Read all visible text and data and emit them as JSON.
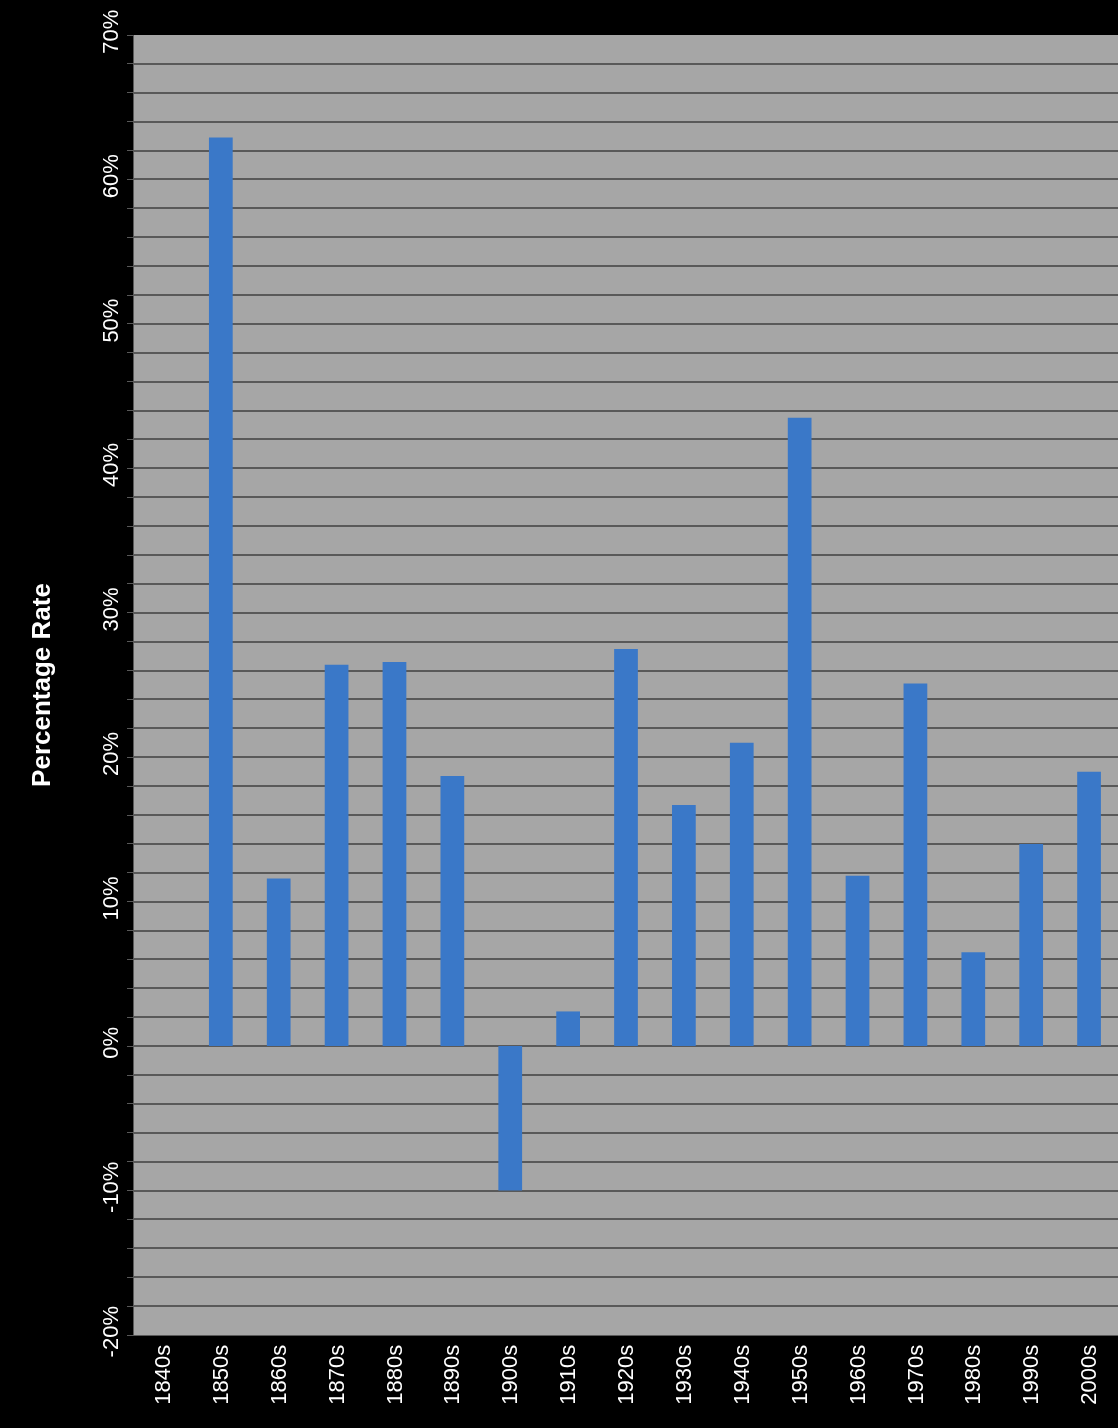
{
  "chart_data": {
    "type": "bar",
    "ylabel": "Percentage Rate",
    "categories": [
      "1840s",
      "1850s",
      "1860s",
      "1870s",
      "1880s",
      "1890s",
      "1900s",
      "1910s",
      "1920s",
      "1930s",
      "1940s",
      "1950s",
      "1960s",
      "1970s",
      "1980s",
      "1990s",
      "2000s"
    ],
    "values": [
      null,
      62.9,
      11.6,
      26.4,
      26.6,
      18.7,
      -10.0,
      2.4,
      27.5,
      16.7,
      21.0,
      43.5,
      11.8,
      25.1,
      6.5,
      14.0,
      19.0
    ],
    "color": "#3a78c8",
    "ylim": [
      -20,
      70
    ],
    "yticks": [
      {
        "value": -20,
        "label": "-20%"
      },
      {
        "value": -18,
        "label": null
      },
      {
        "value": -16,
        "label": null
      },
      {
        "value": -14,
        "label": null
      },
      {
        "value": -12,
        "label": null
      },
      {
        "value": -10,
        "label": "-10%"
      },
      {
        "value": -8,
        "label": null
      },
      {
        "value": -6,
        "label": null
      },
      {
        "value": -4,
        "label": null
      },
      {
        "value": -2,
        "label": null
      },
      {
        "value": 0,
        "label": "0%"
      },
      {
        "value": 2,
        "label": null
      },
      {
        "value": 4,
        "label": null
      },
      {
        "value": 6,
        "label": null
      },
      {
        "value": 8,
        "label": null
      },
      {
        "value": 10,
        "label": "10%"
      },
      {
        "value": 12,
        "label": null
      },
      {
        "value": 14,
        "label": null
      },
      {
        "value": 16,
        "label": null
      },
      {
        "value": 18,
        "label": null
      },
      {
        "value": 20,
        "label": "20%"
      },
      {
        "value": 22,
        "label": null
      },
      {
        "value": 24,
        "label": null
      },
      {
        "value": 26,
        "label": null
      },
      {
        "value": 28,
        "label": null
      },
      {
        "value": 30,
        "label": "30%"
      },
      {
        "value": 32,
        "label": null
      },
      {
        "value": 34,
        "label": null
      },
      {
        "value": 36,
        "label": null
      },
      {
        "value": 38,
        "label": null
      },
      {
        "value": 40,
        "label": "40%"
      },
      {
        "value": 42,
        "label": null
      },
      {
        "value": 44,
        "label": null
      },
      {
        "value": 46,
        "label": null
      },
      {
        "value": 48,
        "label": null
      },
      {
        "value": 50,
        "label": "50%"
      },
      {
        "value": 52,
        "label": null
      },
      {
        "value": 54,
        "label": null
      },
      {
        "value": 56,
        "label": null
      },
      {
        "value": 58,
        "label": null
      },
      {
        "value": 60,
        "label": "60%"
      },
      {
        "value": 62,
        "label": null
      },
      {
        "value": 64,
        "label": null
      },
      {
        "value": 66,
        "label": null
      },
      {
        "value": 68,
        "label": null
      },
      {
        "value": 70,
        "label": "70%"
      }
    ],
    "grid": "y"
  }
}
